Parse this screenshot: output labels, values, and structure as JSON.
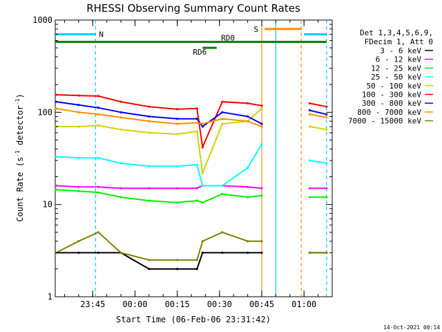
{
  "chart_data": {
    "type": "line",
    "title": "RHESSI Observing Summary Count Rates",
    "xlabel": "Start Time (06-Feb-06 23:31:42)",
    "ylabel_parts": [
      "Count Rate (s",
      "-1",
      " detector",
      "-1",
      ")"
    ],
    "y_scale": "log",
    "ylim": [
      1,
      1000
    ],
    "xlim": [
      "23:31:42",
      "01:10"
    ],
    "y_ticks": [
      "1",
      "10",
      "100",
      "1000"
    ],
    "x_ticks": [
      "23:45",
      "00:00",
      "00:15",
      "00:30",
      "00:45",
      "01:00"
    ],
    "legend_placement": "right",
    "legend_header": [
      "Det 1,3,4,5,6,9,",
      "FDecim 1, Att 0"
    ],
    "timestamp": "14-Oct-2021 00:14",
    "series": [
      {
        "name": "3 - 6 keV",
        "color": "#000000",
        "x": [
          "23:32",
          "23:40",
          "23:47",
          "23:55",
          "00:05",
          "00:15",
          "00:22",
          "00:24",
          "00:31",
          "00:40",
          "00:45",
          "00:59",
          "01:02",
          "01:08"
        ],
        "values": [
          3,
          3,
          3,
          3,
          2,
          2,
          2,
          3,
          3,
          3,
          3,
          null,
          3,
          3
        ]
      },
      {
        "name": "6 - 12 keV",
        "color": "#ff00ff",
        "x": [
          "23:32",
          "23:40",
          "23:47",
          "23:55",
          "00:05",
          "00:15",
          "00:22",
          "00:24",
          "00:31",
          "00:40",
          "00:45",
          "00:59",
          "01:02",
          "01:08"
        ],
        "values": [
          16,
          15.5,
          15.5,
          15,
          15,
          15,
          15,
          16,
          16,
          15.5,
          15,
          null,
          15,
          15
        ]
      },
      {
        "name": "12 - 25 keV",
        "color": "#00ee00",
        "x": [
          "23:32",
          "23:40",
          "23:47",
          "23:55",
          "00:05",
          "00:15",
          "00:22",
          "00:24",
          "00:31",
          "00:40",
          "00:45",
          "00:59",
          "01:02",
          "01:08"
        ],
        "values": [
          14.5,
          14,
          13.5,
          12,
          11,
          10.5,
          11,
          10.5,
          13,
          12,
          12.5,
          null,
          12,
          12
        ]
      },
      {
        "name": "25 - 50 keV",
        "color": "#00ffff",
        "x": [
          "23:32",
          "23:40",
          "23:47",
          "23:55",
          "00:05",
          "00:15",
          "00:22",
          "00:24",
          "00:31",
          "00:40",
          "00:45",
          "00:59",
          "01:02",
          "01:08"
        ],
        "values": [
          33,
          32,
          32,
          28,
          26,
          26,
          27,
          16,
          16,
          25,
          45,
          null,
          30,
          28
        ]
      },
      {
        "name": "50 - 100 keV",
        "color": "#d2d200",
        "x": [
          "23:32",
          "23:40",
          "23:47",
          "23:55",
          "00:05",
          "00:15",
          "00:22",
          "00:24",
          "00:31",
          "00:40",
          "00:45",
          "00:59",
          "01:02",
          "01:08"
        ],
        "values": [
          70,
          70,
          72,
          65,
          60,
          58,
          62,
          22,
          75,
          80,
          110,
          null,
          70,
          65
        ]
      },
      {
        "name": "100 - 300 keV",
        "color": "#ff0000",
        "x": [
          "23:32",
          "23:40",
          "23:47",
          "23:55",
          "00:05",
          "00:15",
          "00:22",
          "00:24",
          "00:31",
          "00:40",
          "00:45",
          "00:59",
          "01:02",
          "01:08"
        ],
        "values": [
          155,
          152,
          150,
          130,
          115,
          108,
          110,
          42,
          130,
          125,
          118,
          null,
          125,
          115
        ]
      },
      {
        "name": "300 - 800 keV",
        "color": "#0000ee",
        "x": [
          "23:32",
          "23:40",
          "23:47",
          "23:55",
          "00:05",
          "00:15",
          "00:22",
          "00:24",
          "00:31",
          "00:40",
          "00:45",
          "00:59",
          "01:02",
          "01:08"
        ],
        "values": [
          130,
          120,
          112,
          100,
          90,
          85,
          85,
          70,
          100,
          90,
          75,
          null,
          105,
          95
        ]
      },
      {
        "name": "800 - 7000 keV",
        "color": "#ff8c00",
        "x": [
          "23:32",
          "23:40",
          "23:47",
          "23:55",
          "00:05",
          "00:15",
          "00:22",
          "00:24",
          "00:31",
          "00:40",
          "00:45",
          "00:59",
          "01:02",
          "01:08"
        ],
        "values": [
          110,
          100,
          95,
          88,
          80,
          75,
          77,
          75,
          85,
          80,
          70,
          null,
          95,
          88
        ]
      },
      {
        "name": "7000 - 15000 keV",
        "color": "#808000",
        "x": [
          "23:32",
          "23:40",
          "23:47",
          "23:55",
          "00:05",
          "00:15",
          "00:22",
          "00:24",
          "00:31",
          "00:40",
          "00:45",
          "00:59",
          "01:02",
          "01:08"
        ],
        "values": [
          3,
          4,
          5,
          3,
          2.5,
          2.5,
          2.5,
          4,
          5,
          4,
          4,
          null,
          3,
          3
        ]
      }
    ],
    "markers": {
      "bars": [
        {
          "label": "N",
          "color": "#00ccff",
          "level": 700,
          "segments": [
            [
              "23:31:42",
              "23:46"
            ],
            [
              "01:00",
              "01:08"
            ]
          ]
        },
        {
          "label": "RD0",
          "color": "#008000",
          "level": 580,
          "segments": [
            [
              "23:31:42",
              "01:08"
            ]
          ]
        },
        {
          "label": "RD6",
          "color": "#008000",
          "level": 500,
          "segments": [
            [
              "00:24",
              "00:29"
            ]
          ]
        },
        {
          "label": "S",
          "color": "#ff8c00",
          "level": 800,
          "segments": [
            [
              "00:46",
              "00:59"
            ]
          ]
        }
      ],
      "vlines": [
        {
          "time": "23:46",
          "color": "#00ccff",
          "style": "dashed"
        },
        {
          "time": "00:45",
          "color": "#ff8c00",
          "style": "solid"
        },
        {
          "time": "00:50",
          "color": "#00ccff",
          "style": "solid"
        },
        {
          "time": "00:59",
          "color": "#ff8c00",
          "style": "dashed"
        },
        {
          "time": "01:08",
          "color": "#00ccff",
          "style": "dashed"
        }
      ]
    }
  }
}
